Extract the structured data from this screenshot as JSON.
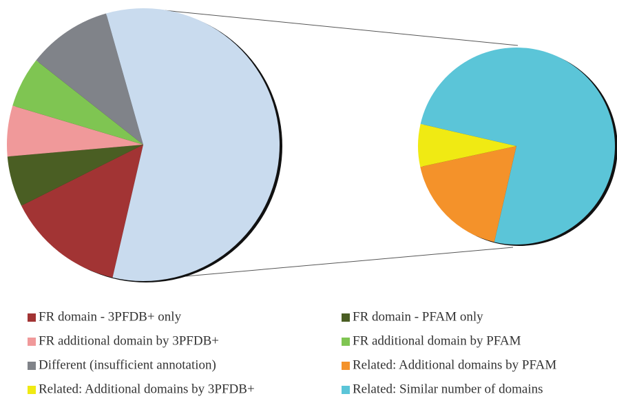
{
  "chart_data": [
    {
      "type": "pie",
      "categories": [
        "FR domain - 3PFDB+ only",
        "FR domain - PFAM only",
        "FR additional domain by 3PFDB+",
        "FR additional domain by PFAM",
        "Different (insufficient annotation)",
        null
      ],
      "values": [
        14,
        6,
        6,
        6,
        10,
        58
      ],
      "colors": [
        "#a23434",
        "#4a5e23",
        "#f0999a",
        "#7fc552",
        "#808389",
        "#c9dbee"
      ]
    },
    {
      "type": "pie",
      "categories": [
        "Related: Additional domains by PFAM",
        "Related: Additional domains by 3PFDB+",
        "Related: Similar number of domains"
      ],
      "values": [
        18,
        7,
        75
      ],
      "colors": [
        "#f4922a",
        "#f0ea13",
        "#5bc5d8"
      ]
    }
  ]
}
